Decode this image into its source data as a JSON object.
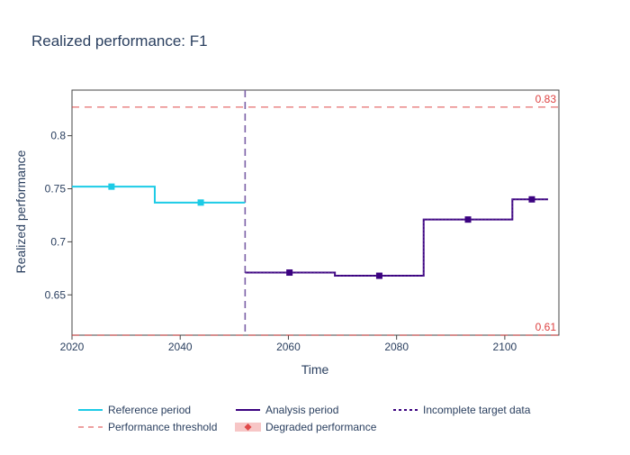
{
  "chart_data": {
    "type": "line",
    "title": "Realized performance: F1",
    "xlabel": "Time",
    "ylabel": "Realized performance",
    "xlim": [
      2020,
      2110
    ],
    "ylim": [
      0.612,
      0.843
    ],
    "x_ticks": [
      2020,
      2040,
      2060,
      2080,
      2100
    ],
    "y_ticks": [
      0.65,
      0.7,
      0.75,
      0.8
    ],
    "x_tick_labels": [
      "2020",
      "2040",
      "2060",
      "2080",
      "2100"
    ],
    "y_tick_labels": [
      "0.65",
      "0.7",
      "0.75",
      "0.8"
    ],
    "grid": false,
    "legend_position": "bottom",
    "colors": {
      "reference": "#1ccbe6",
      "analysis": "#3b0280",
      "threshold": "#dd4040",
      "degraded": "#e04848",
      "degraded_band": "#f5b8b8",
      "boundary": "#7a5fa6",
      "axis": "#444444",
      "text": "#2a3f5f"
    },
    "series": [
      {
        "name": "Reference period",
        "style": "step",
        "segments": [
          {
            "start": 2020,
            "end": 2035.3,
            "value": 0.752,
            "marker_x": 2027.3
          },
          {
            "start": 2035.3,
            "end": 2052,
            "value": 0.737,
            "marker_x": 2043.8
          }
        ]
      },
      {
        "name": "Analysis period",
        "style": "step",
        "segments": [
          {
            "start": 2052,
            "end": 2068.6,
            "value": 0.671,
            "marker_x": 2060.2
          },
          {
            "start": 2068.6,
            "end": 2085,
            "value": 0.668,
            "marker_x": 2076.8
          },
          {
            "start": 2085,
            "end": 2101.4,
            "value": 0.721,
            "marker_x": 2093.2
          },
          {
            "start": 2101.4,
            "end": 2108,
            "value": 0.74,
            "marker_x": 2105
          }
        ]
      }
    ],
    "period_boundary_x": 2052,
    "thresholds": [
      {
        "value": 0.827,
        "label": "0.83"
      },
      {
        "value": 0.612,
        "label": "0.61"
      }
    ],
    "legend": [
      {
        "label": "Reference period",
        "kind": "reference"
      },
      {
        "label": "Analysis period",
        "kind": "analysis"
      },
      {
        "label": "Incomplete target data",
        "kind": "incomplete"
      },
      {
        "label": "Performance threshold",
        "kind": "threshold"
      },
      {
        "label": "Degraded performance",
        "kind": "degraded"
      }
    ]
  }
}
